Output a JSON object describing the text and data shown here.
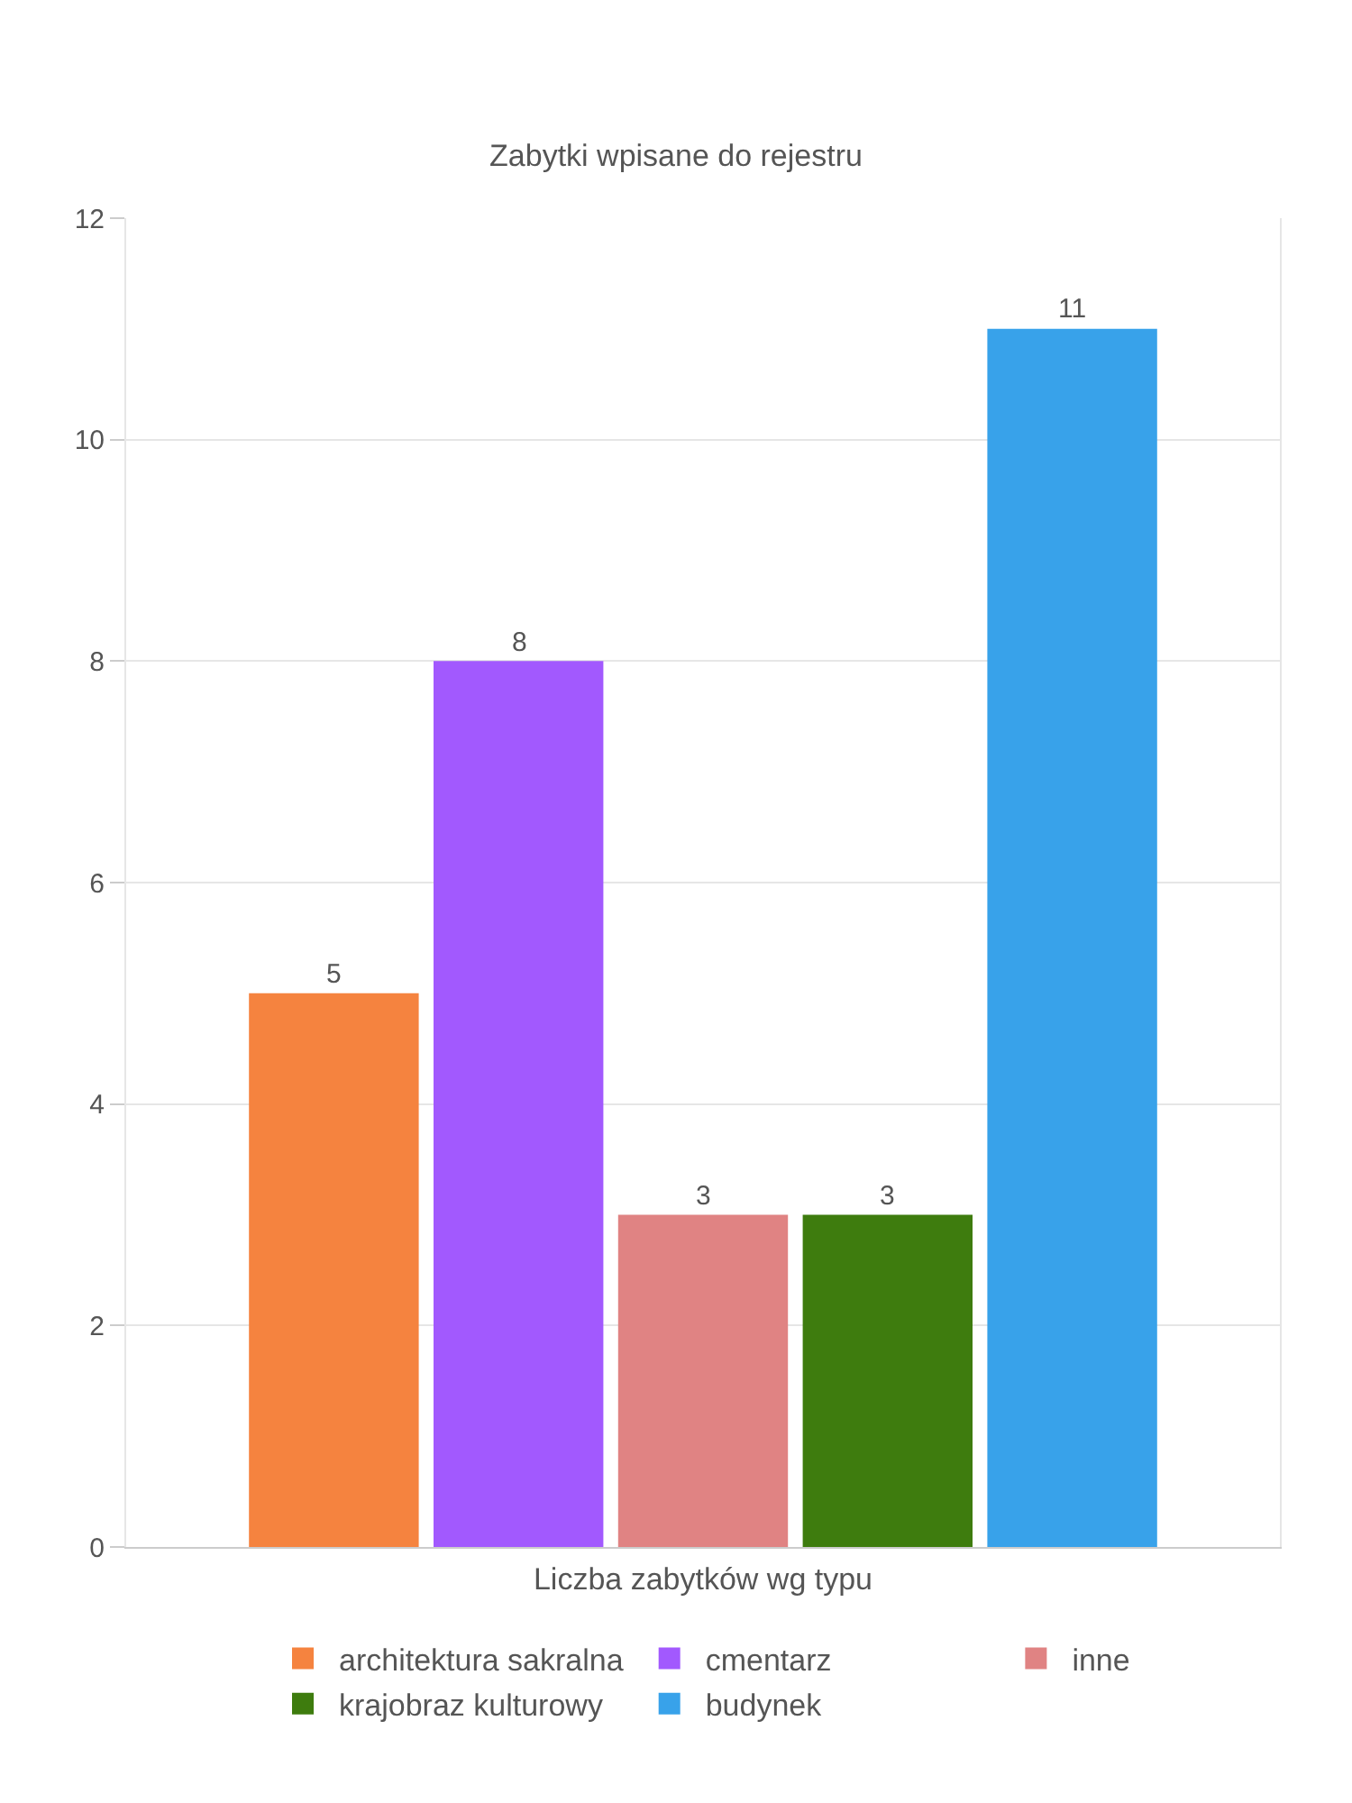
{
  "chart_data": {
    "type": "bar",
    "title": "Zabytki wpisane do rejestru",
    "xlabel": "Liczba zabytków wg typu",
    "categories": [
      null
    ],
    "series": [
      {
        "name": "architektura sakralna",
        "color": "#f5833f",
        "values": [
          5
        ]
      },
      {
        "name": "cmentarz",
        "color": "#a259fe",
        "values": [
          8
        ]
      },
      {
        "name": "inne",
        "color": "#e08383",
        "values": [
          3
        ]
      },
      {
        "name": "krajobraz kulturowy",
        "color": "#3e7c0e",
        "values": [
          3
        ]
      },
      {
        "name": "budynek",
        "color": "#38a2ea",
        "values": [
          11
        ]
      }
    ],
    "ylim": [
      0,
      12
    ],
    "yticks": [
      0,
      2,
      4,
      6,
      8,
      10,
      12
    ],
    "grid": "y",
    "legend": "bottom",
    "data_labels": true
  }
}
